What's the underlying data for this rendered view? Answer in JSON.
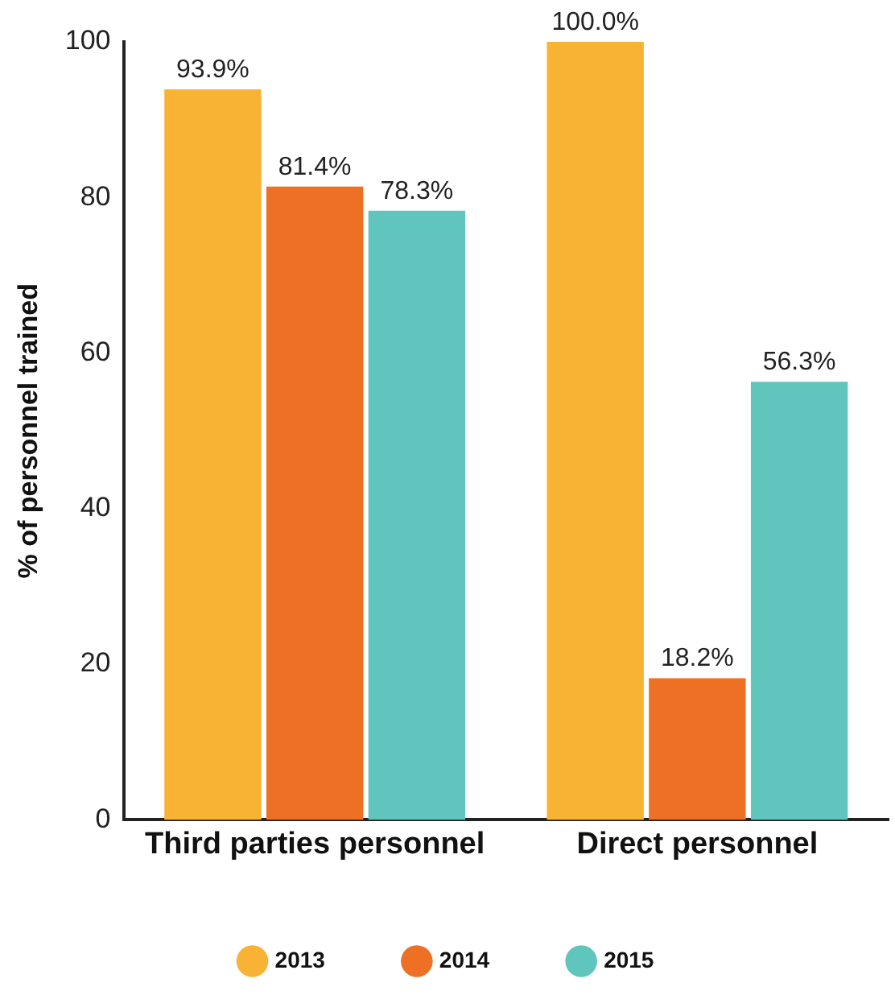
{
  "chart_data": {
    "type": "bar",
    "ylabel": "% of personnel trained",
    "categories": [
      "Third parties personnel",
      "Direct personnel"
    ],
    "series": [
      {
        "name": "2013",
        "color": "#f8b334",
        "values": [
          93.9,
          100.0
        ]
      },
      {
        "name": "2014",
        "color": "#ee7025",
        "values": [
          81.4,
          18.2
        ]
      },
      {
        "name": "2015",
        "color": "#60c5bd",
        "values": [
          78.3,
          56.3
        ]
      }
    ],
    "value_labels": [
      [
        "93.9%",
        "100.0%"
      ],
      [
        "81.4%",
        "18.2%"
      ],
      [
        "78.3%",
        "56.3%"
      ]
    ],
    "ylim": [
      0,
      100
    ],
    "yticks": [
      0,
      20,
      40,
      60,
      80,
      100
    ],
    "grid": false,
    "legend": "bottom"
  }
}
